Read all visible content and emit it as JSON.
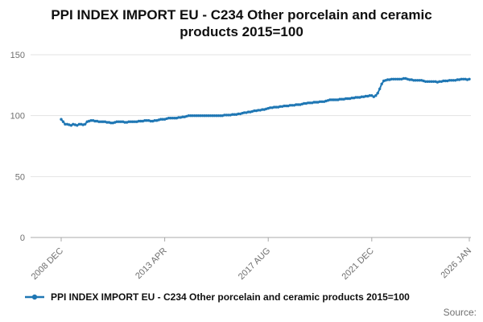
{
  "page": {
    "title_lines": [
      "PPI INDEX IMPORT EU - C234 Other porcelain and ceramic",
      "products 2015=100"
    ],
    "source_label": "Source:"
  },
  "legend": {
    "label": "PPI INDEX IMPORT EU - C234 Other porcelain and ceramic products 2015=100"
  },
  "colors": {
    "series": "#1f77b4",
    "grid": "#e3e3e3",
    "axis": "#a8a8a8",
    "tick_text": "#6f6f6f"
  },
  "chart_data": {
    "type": "line",
    "title": "PPI INDEX IMPORT EU - C234 Other porcelain and ceramic products 2015=100",
    "xlabel": "",
    "ylabel": "",
    "ylim": [
      0,
      150
    ],
    "y_ticks": [
      0,
      50,
      100,
      150
    ],
    "grid": "horizontal",
    "legend_position": "bottom-left",
    "x_tick_labels": [
      "2008 DEC",
      "2013 APR",
      "2017 AUG",
      "2021 DEC",
      "2026 JAN"
    ],
    "x_tick_month_index": [
      0,
      52,
      104,
      156,
      205
    ],
    "x_total_months": 205,
    "series": [
      {
        "name": "PPI INDEX IMPORT EU - C234 Other porcelain and ceramic products 2015=100",
        "start": "2008 DEC",
        "end": "2026 JAN",
        "frequency": "monthly",
        "values": [
          97,
          95,
          93,
          93,
          92.5,
          92,
          93,
          92.5,
          92,
          93,
          93,
          92.5,
          93,
          95,
          95.5,
          96,
          96,
          95.5,
          95.5,
          95,
          95,
          95,
          95,
          94.5,
          94.5,
          94,
          94,
          94.5,
          95,
          95,
          95,
          95,
          94.5,
          94.5,
          95,
          95,
          95,
          95,
          95,
          95.5,
          95.5,
          95.5,
          96,
          96,
          96,
          95.5,
          95.5,
          96,
          96,
          96.5,
          97,
          97,
          97,
          97.5,
          98,
          98,
          98,
          98,
          98,
          98.5,
          98.5,
          99,
          99,
          99.5,
          100,
          100,
          100,
          100,
          100,
          100,
          100,
          100,
          100,
          100,
          100,
          100,
          100,
          100,
          100,
          100,
          100,
          100,
          100.5,
          100.5,
          100.5,
          100.5,
          101,
          101,
          101,
          101.5,
          101.5,
          102,
          102.5,
          102.5,
          103,
          103,
          103.5,
          104,
          104,
          104.5,
          104.5,
          105,
          105,
          105.5,
          106,
          106.5,
          106.5,
          107,
          107,
          107,
          107.5,
          107.5,
          108,
          108,
          108,
          108.5,
          108.5,
          108.5,
          109,
          109,
          109,
          109.5,
          110,
          110,
          110.5,
          110.5,
          110.5,
          111,
          111,
          111,
          111.5,
          111.5,
          111.5,
          112,
          112.5,
          113,
          113,
          113,
          113,
          113,
          113.5,
          113.5,
          113.5,
          114,
          114,
          114,
          114.5,
          114.5,
          115,
          115,
          115,
          115.5,
          115.5,
          116,
          116,
          116.5,
          116.5,
          115.5,
          116.5,
          118.5,
          122,
          126,
          128.5,
          129,
          129.5,
          129.5,
          130,
          130,
          130,
          130,
          130,
          130,
          130.5,
          130.5,
          130,
          129.5,
          129.5,
          129,
          129,
          129,
          129,
          129,
          128.5,
          128,
          128,
          128,
          128,
          128,
          128,
          127.5,
          128,
          128,
          128.5,
          128.5,
          128.5,
          129,
          129,
          129,
          129,
          129.5,
          129.5,
          130,
          130,
          130,
          129.5,
          130
        ]
      }
    ]
  }
}
